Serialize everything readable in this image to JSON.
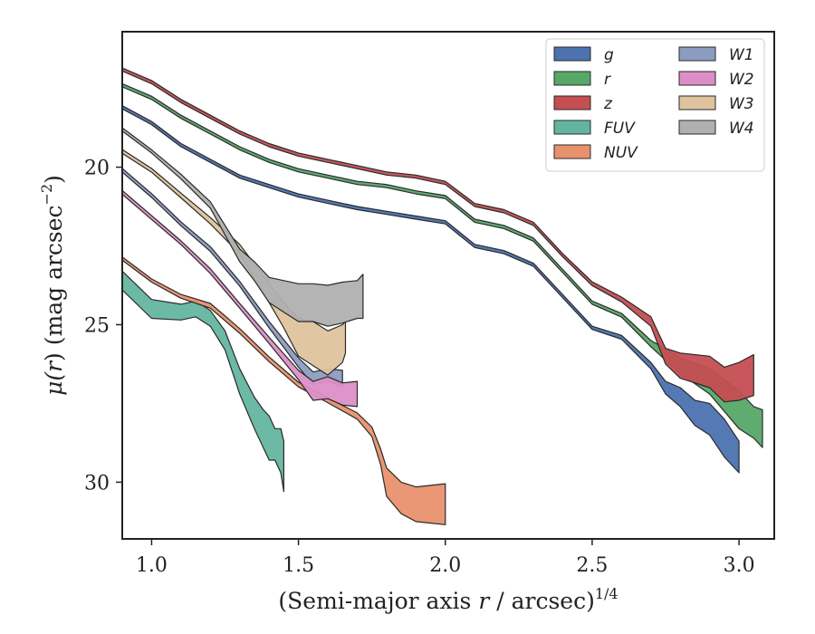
{
  "chart_data": {
    "type": "area",
    "xlabel": "(Semi-major axis r / arcsec)",
    "xlabel_prefix": "(Semi-major axis ",
    "xlabel_var": "r",
    "xlabel_suffix": " / arcsec)",
    "xlabel_exponent": "1/4",
    "ylabel": "μ(r) (mag arcsec⁻²)",
    "ylabel_prefix": "μ(",
    "ylabel_var": "r",
    "ylabel_suffix": ") (mag arcsec",
    "ylabel_exponent": "−2",
    "ylabel_close": ")",
    "xlim": [
      0.9,
      3.12
    ],
    "ylim": [
      31.8,
      15.7
    ],
    "y_inverted": true,
    "xticks": [
      1.0,
      1.5,
      2.0,
      2.5,
      3.0
    ],
    "xtick_labels": [
      "1.0",
      "1.5",
      "2.0",
      "2.5",
      "3.0"
    ],
    "yticks": [
      20,
      25,
      30
    ],
    "ytick_labels": [
      "20",
      "25",
      "30"
    ],
    "grid": false,
    "legend_position": "top-right",
    "legend_columns": 2,
    "series": [
      {
        "name": "g",
        "color": "#4c72b0",
        "x": [
          0.9,
          1.0,
          1.1,
          1.2,
          1.3,
          1.4,
          1.5,
          1.6,
          1.7,
          1.8,
          1.9,
          2.0,
          2.1,
          2.2,
          2.3,
          2.4,
          2.5,
          2.6,
          2.7,
          2.75,
          2.8,
          2.85,
          2.9,
          2.95,
          3.0
        ],
        "y": [
          18.1,
          18.6,
          19.3,
          19.8,
          20.3,
          20.6,
          20.9,
          21.1,
          21.3,
          21.45,
          21.6,
          21.75,
          22.5,
          22.7,
          23.1,
          24.1,
          25.1,
          25.4,
          26.3,
          27.0,
          27.3,
          27.8,
          28.0,
          28.6,
          29.2
        ],
        "width": [
          0.1,
          0.1,
          0.1,
          0.1,
          0.1,
          0.1,
          0.1,
          0.1,
          0.1,
          0.1,
          0.1,
          0.1,
          0.1,
          0.1,
          0.1,
          0.1,
          0.1,
          0.12,
          0.2,
          0.4,
          0.6,
          0.8,
          1.0,
          1.2,
          1.0
        ]
      },
      {
        "name": "r",
        "color": "#55a868",
        "x": [
          0.9,
          1.0,
          1.1,
          1.2,
          1.3,
          1.4,
          1.5,
          1.6,
          1.7,
          1.8,
          1.9,
          2.0,
          2.1,
          2.2,
          2.3,
          2.4,
          2.5,
          2.6,
          2.7,
          2.8,
          2.9,
          3.0,
          3.05,
          3.08
        ],
        "y": [
          17.4,
          17.8,
          18.4,
          18.9,
          19.4,
          19.8,
          20.1,
          20.3,
          20.5,
          20.6,
          20.8,
          20.95,
          21.7,
          21.9,
          22.3,
          23.3,
          24.3,
          24.7,
          25.6,
          26.3,
          26.8,
          27.7,
          28.1,
          28.3
        ],
        "width": [
          0.1,
          0.1,
          0.1,
          0.1,
          0.1,
          0.1,
          0.1,
          0.1,
          0.1,
          0.1,
          0.1,
          0.1,
          0.1,
          0.1,
          0.1,
          0.1,
          0.1,
          0.12,
          0.2,
          0.5,
          0.8,
          1.2,
          1.0,
          1.2
        ]
      },
      {
        "name": "z",
        "color": "#c44e52",
        "x": [
          0.9,
          1.0,
          1.1,
          1.2,
          1.3,
          1.4,
          1.5,
          1.6,
          1.7,
          1.8,
          1.9,
          2.0,
          2.1,
          2.2,
          2.3,
          2.4,
          2.5,
          2.6,
          2.7,
          2.75,
          2.8,
          2.9,
          2.95,
          3.0,
          3.05
        ],
        "y": [
          16.9,
          17.3,
          17.9,
          18.4,
          18.9,
          19.3,
          19.6,
          19.8,
          20.0,
          20.2,
          20.3,
          20.5,
          21.2,
          21.4,
          21.8,
          22.8,
          23.7,
          24.2,
          24.9,
          26.0,
          26.3,
          26.5,
          26.9,
          26.8,
          26.6
        ],
        "width": [
          0.1,
          0.1,
          0.1,
          0.1,
          0.1,
          0.1,
          0.1,
          0.1,
          0.1,
          0.1,
          0.1,
          0.1,
          0.1,
          0.1,
          0.1,
          0.1,
          0.12,
          0.15,
          0.3,
          0.5,
          0.8,
          1.0,
          1.1,
          1.2,
          1.3
        ]
      },
      {
        "name": "FUV",
        "color": "#64b5a0",
        "x": [
          0.9,
          1.0,
          1.1,
          1.15,
          1.2,
          1.25,
          1.3,
          1.35,
          1.38,
          1.4,
          1.42,
          1.44,
          1.45
        ],
        "y": [
          23.6,
          24.5,
          24.6,
          24.5,
          24.8,
          25.5,
          26.8,
          27.8,
          28.3,
          28.6,
          28.8,
          29.0,
          29.5
        ],
        "width": [
          0.6,
          0.6,
          0.5,
          0.5,
          0.5,
          0.6,
          0.8,
          1.0,
          1.2,
          1.4,
          1.0,
          1.4,
          1.6
        ]
      },
      {
        "name": "NUV",
        "color": "#e8916d",
        "x": [
          0.9,
          1.0,
          1.1,
          1.2,
          1.3,
          1.4,
          1.5,
          1.6,
          1.7,
          1.75,
          1.78,
          1.8,
          1.85,
          1.9,
          2.0
        ],
        "y": [
          22.9,
          23.6,
          24.1,
          24.4,
          25.2,
          26.1,
          26.9,
          27.4,
          27.9,
          28.4,
          29.2,
          30.0,
          30.5,
          30.7,
          30.7
        ],
        "width": [
          0.1,
          0.1,
          0.12,
          0.15,
          0.15,
          0.15,
          0.15,
          0.15,
          0.2,
          0.3,
          0.5,
          0.9,
          1.0,
          1.1,
          1.3
        ]
      },
      {
        "name": "W1",
        "color": "#8c9cc1",
        "x": [
          0.9,
          1.0,
          1.1,
          1.2,
          1.3,
          1.4,
          1.5,
          1.55,
          1.6,
          1.65
        ],
        "y": [
          20.1,
          20.9,
          21.8,
          22.6,
          23.7,
          25.0,
          26.2,
          26.7,
          26.6,
          26.7
        ],
        "width": [
          0.12,
          0.12,
          0.12,
          0.15,
          0.15,
          0.2,
          0.3,
          0.4,
          0.4,
          0.5
        ]
      },
      {
        "name": "W2",
        "color": "#dc8fc7",
        "x": [
          0.9,
          1.0,
          1.1,
          1.2,
          1.3,
          1.4,
          1.5,
          1.55,
          1.6,
          1.65,
          1.7
        ],
        "y": [
          20.8,
          21.6,
          22.4,
          23.3,
          24.4,
          25.5,
          26.6,
          27.1,
          27.0,
          27.2,
          27.2
        ],
        "width": [
          0.12,
          0.12,
          0.12,
          0.15,
          0.15,
          0.2,
          0.3,
          0.6,
          0.7,
          0.7,
          0.8
        ]
      },
      {
        "name": "W3",
        "color": "#dfc39e",
        "x": [
          0.9,
          1.0,
          1.1,
          1.2,
          1.3,
          1.4,
          1.45,
          1.5,
          1.55,
          1.6,
          1.65,
          1.66
        ],
        "y": [
          19.5,
          20.1,
          20.9,
          21.7,
          22.6,
          24.0,
          24.7,
          25.4,
          25.6,
          25.9,
          25.6,
          25.4
        ],
        "width": [
          0.12,
          0.12,
          0.15,
          0.2,
          0.3,
          0.6,
          0.8,
          1.2,
          1.4,
          1.4,
          1.2,
          1.0
        ]
      },
      {
        "name": "W4",
        "color": "#b0b0b0",
        "x": [
          0.9,
          1.0,
          1.1,
          1.2,
          1.3,
          1.35,
          1.4,
          1.45,
          1.5,
          1.55,
          1.6,
          1.65,
          1.7,
          1.72
        ],
        "y": [
          18.8,
          19.5,
          20.3,
          21.2,
          22.8,
          23.3,
          23.9,
          24.1,
          24.3,
          24.3,
          24.4,
          24.3,
          24.2,
          24.1
        ],
        "width": [
          0.1,
          0.1,
          0.15,
          0.2,
          0.4,
          0.6,
          0.8,
          1.0,
          1.2,
          1.2,
          1.3,
          1.3,
          1.2,
          1.4
        ]
      }
    ]
  }
}
